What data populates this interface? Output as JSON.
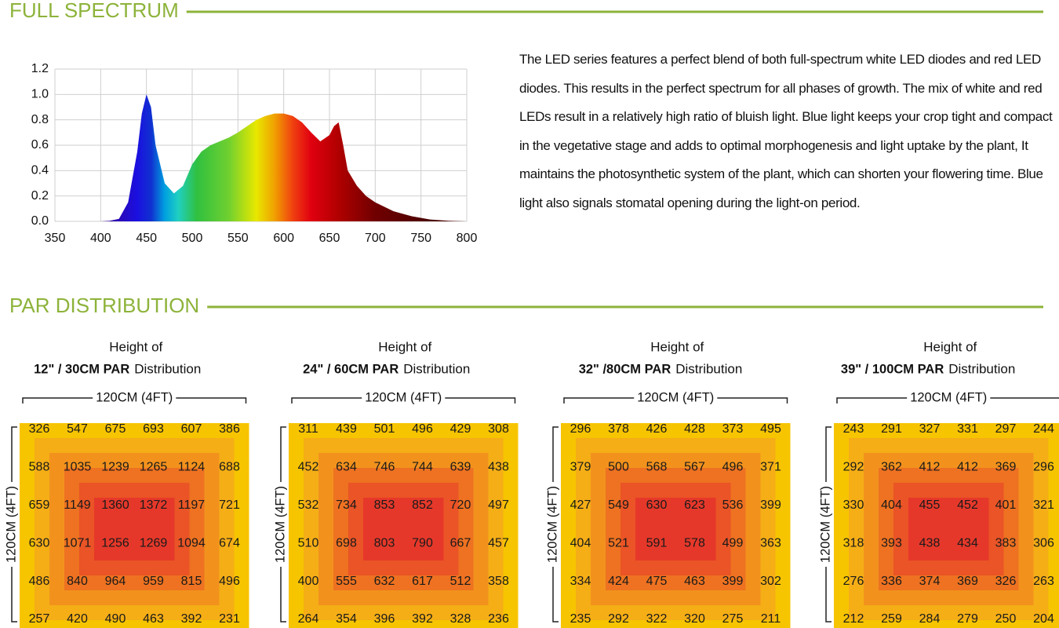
{
  "spectrum_section": {
    "title": "FULL SPECTRUM",
    "chart": {
      "type": "area",
      "x": [
        350,
        360,
        370,
        380,
        390,
        400,
        410,
        420,
        430,
        440,
        445,
        450,
        455,
        460,
        470,
        480,
        490,
        500,
        510,
        520,
        530,
        540,
        550,
        560,
        570,
        580,
        590,
        600,
        610,
        620,
        630,
        640,
        650,
        655,
        660,
        665,
        670,
        680,
        690,
        700,
        720,
        740,
        760,
        780,
        800
      ],
      "values": [
        0,
        0,
        0,
        0,
        0,
        0,
        0.005,
        0.02,
        0.15,
        0.55,
        0.85,
        1.0,
        0.9,
        0.6,
        0.3,
        0.22,
        0.28,
        0.45,
        0.55,
        0.6,
        0.63,
        0.66,
        0.7,
        0.75,
        0.8,
        0.83,
        0.85,
        0.85,
        0.83,
        0.78,
        0.7,
        0.63,
        0.68,
        0.75,
        0.78,
        0.6,
        0.4,
        0.28,
        0.2,
        0.15,
        0.08,
        0.04,
        0.015,
        0.005,
        0
      ],
      "xlim": [
        350,
        800
      ],
      "ylim": [
        0,
        1.2
      ],
      "xticks": [
        350,
        400,
        450,
        500,
        550,
        600,
        650,
        700,
        750,
        800
      ],
      "yticks": [
        {
          "value": 0,
          "label": "0.0"
        },
        0.2,
        0.4,
        0.6,
        0.8,
        {
          "value": 1,
          "label": "1.0"
        },
        1.2
      ],
      "grid": true
    },
    "description": "The LED series features a perfect blend of both full-spectrum white LED diodes and red LED diodes. This results in the perfect spectrum for all phases of growth. The mix of white and red LEDs result in a relatively high ratio of bluish light. Blue light keeps your crop tight and compact in the vegetative stage and adds to optimal morphogenesis and light uptake by the plant, It maintains the photosynthetic system of the plant, which can shorten your flowering time. Blue light also signals stomatal opening during the light-on period."
  },
  "par_section": {
    "title": "PAR DISTRIBUTION",
    "panels": [
      {
        "height_label": "Height of",
        "par_label": "12\" / 30CM PAR",
        "distribution_label": "Distribution",
        "width_label": "120CM (4FT)",
        "depth_label": "120CM (4FT)",
        "rows": [
          [
            "326",
            "547",
            "675",
            "693",
            "607",
            "386"
          ],
          [
            "588",
            "1035",
            "1239",
            "1265",
            "1124",
            "688"
          ],
          [
            "659",
            "1149",
            "1360",
            "1372",
            "1197",
            "721"
          ],
          [
            "630",
            "1071",
            "1256",
            "1269",
            "1094",
            "674"
          ],
          [
            "486",
            "840",
            "964",
            "959",
            "815",
            "496"
          ],
          [
            "257",
            "420",
            "490",
            "463",
            "392",
            "231"
          ]
        ]
      },
      {
        "height_label": "Height of",
        "par_label": "24\" / 60CM PAR",
        "distribution_label": "Distribution",
        "width_label": "120CM (4FT)",
        "depth_label": "120CM (4FT)",
        "rows": [
          [
            "311",
            "439",
            "501",
            "496",
            "429",
            "308"
          ],
          [
            "452",
            "634",
            "746",
            "744",
            "639",
            "438"
          ],
          [
            "532",
            "734",
            "853",
            "852",
            "720",
            "497"
          ],
          [
            "510",
            "698",
            "803",
            "790",
            "667",
            "457"
          ],
          [
            "400",
            "555",
            "632",
            "617",
            "512",
            "358"
          ],
          [
            "264",
            "354",
            "396",
            "392",
            "328",
            "236"
          ]
        ]
      },
      {
        "height_label": "Height of",
        "par_label": "32\" /80CM PAR",
        "distribution_label": "Distribution",
        "width_label": "120CM (4FT)",
        "depth_label": "120CM (4FT)",
        "rows": [
          [
            "296",
            "378",
            "426",
            "428",
            "373",
            "495"
          ],
          [
            "379",
            "500",
            "568",
            "567",
            "496",
            "371"
          ],
          [
            "427",
            "549",
            "630",
            "623",
            "536",
            "399"
          ],
          [
            "404",
            "521",
            "591",
            "578",
            "499",
            "363"
          ],
          [
            "334",
            "424",
            "475",
            "463",
            "399",
            "302"
          ],
          [
            "235",
            "292",
            "322",
            "320",
            "275",
            "211"
          ]
        ]
      },
      {
        "height_label": "Height of",
        "par_label": "39\" / 100CM PAR",
        "distribution_label": "Distribution",
        "width_label": "120CM (4FT)",
        "depth_label": "120CM (4FT)",
        "rows": [
          [
            "243",
            "291",
            "327",
            "331",
            "297",
            "244"
          ],
          [
            "292",
            "362",
            "412",
            "412",
            "369",
            "296"
          ],
          [
            "330",
            "404",
            "455",
            "452",
            "401",
            "321"
          ],
          [
            "318",
            "393",
            "438",
            "434",
            "383",
            "306"
          ],
          [
            "276",
            "336",
            "374",
            "369",
            "326",
            "263"
          ],
          [
            "212",
            "259",
            "284",
            "279",
            "250",
            "204"
          ]
        ]
      }
    ]
  }
}
